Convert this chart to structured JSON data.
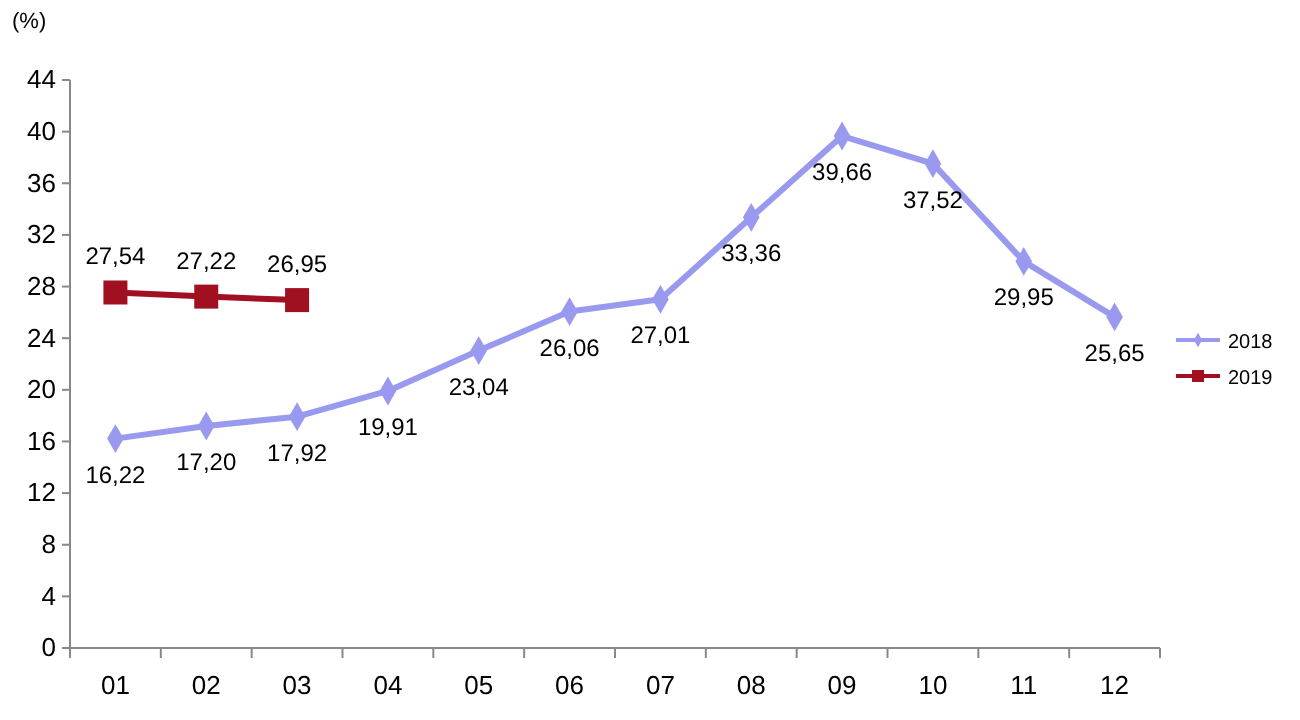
{
  "chart_data": {
    "type": "line",
    "ylabel": "(%)",
    "categories": [
      "01",
      "02",
      "03",
      "04",
      "05",
      "06",
      "07",
      "08",
      "09",
      "10",
      "11",
      "12"
    ],
    "ylim": [
      0,
      44
    ],
    "yticks": [
      0,
      4,
      8,
      12,
      16,
      20,
      24,
      28,
      32,
      36,
      40,
      44
    ],
    "grid": false,
    "legend": "right",
    "series": [
      {
        "name": "2018",
        "color": "#9999f0",
        "marker": "diamond",
        "values": [
          16.22,
          17.2,
          17.92,
          19.91,
          23.04,
          26.06,
          27.01,
          33.36,
          39.66,
          37.52,
          29.95,
          25.65
        ],
        "value_labels": [
          "16,22",
          "17,20",
          "17,92",
          "19,91",
          "23,04",
          "26,06",
          "27,01",
          "33,36",
          "39,66",
          "37,52",
          "29,95",
          "25,65"
        ]
      },
      {
        "name": "2019",
        "color": "#a01020",
        "marker": "square",
        "values": [
          27.54,
          27.22,
          26.95,
          null,
          null,
          null,
          null,
          null,
          null,
          null,
          null,
          null
        ],
        "value_labels": [
          "27,54",
          "27,22",
          "26,95",
          null,
          null,
          null,
          null,
          null,
          null,
          null,
          null,
          null
        ]
      }
    ]
  }
}
